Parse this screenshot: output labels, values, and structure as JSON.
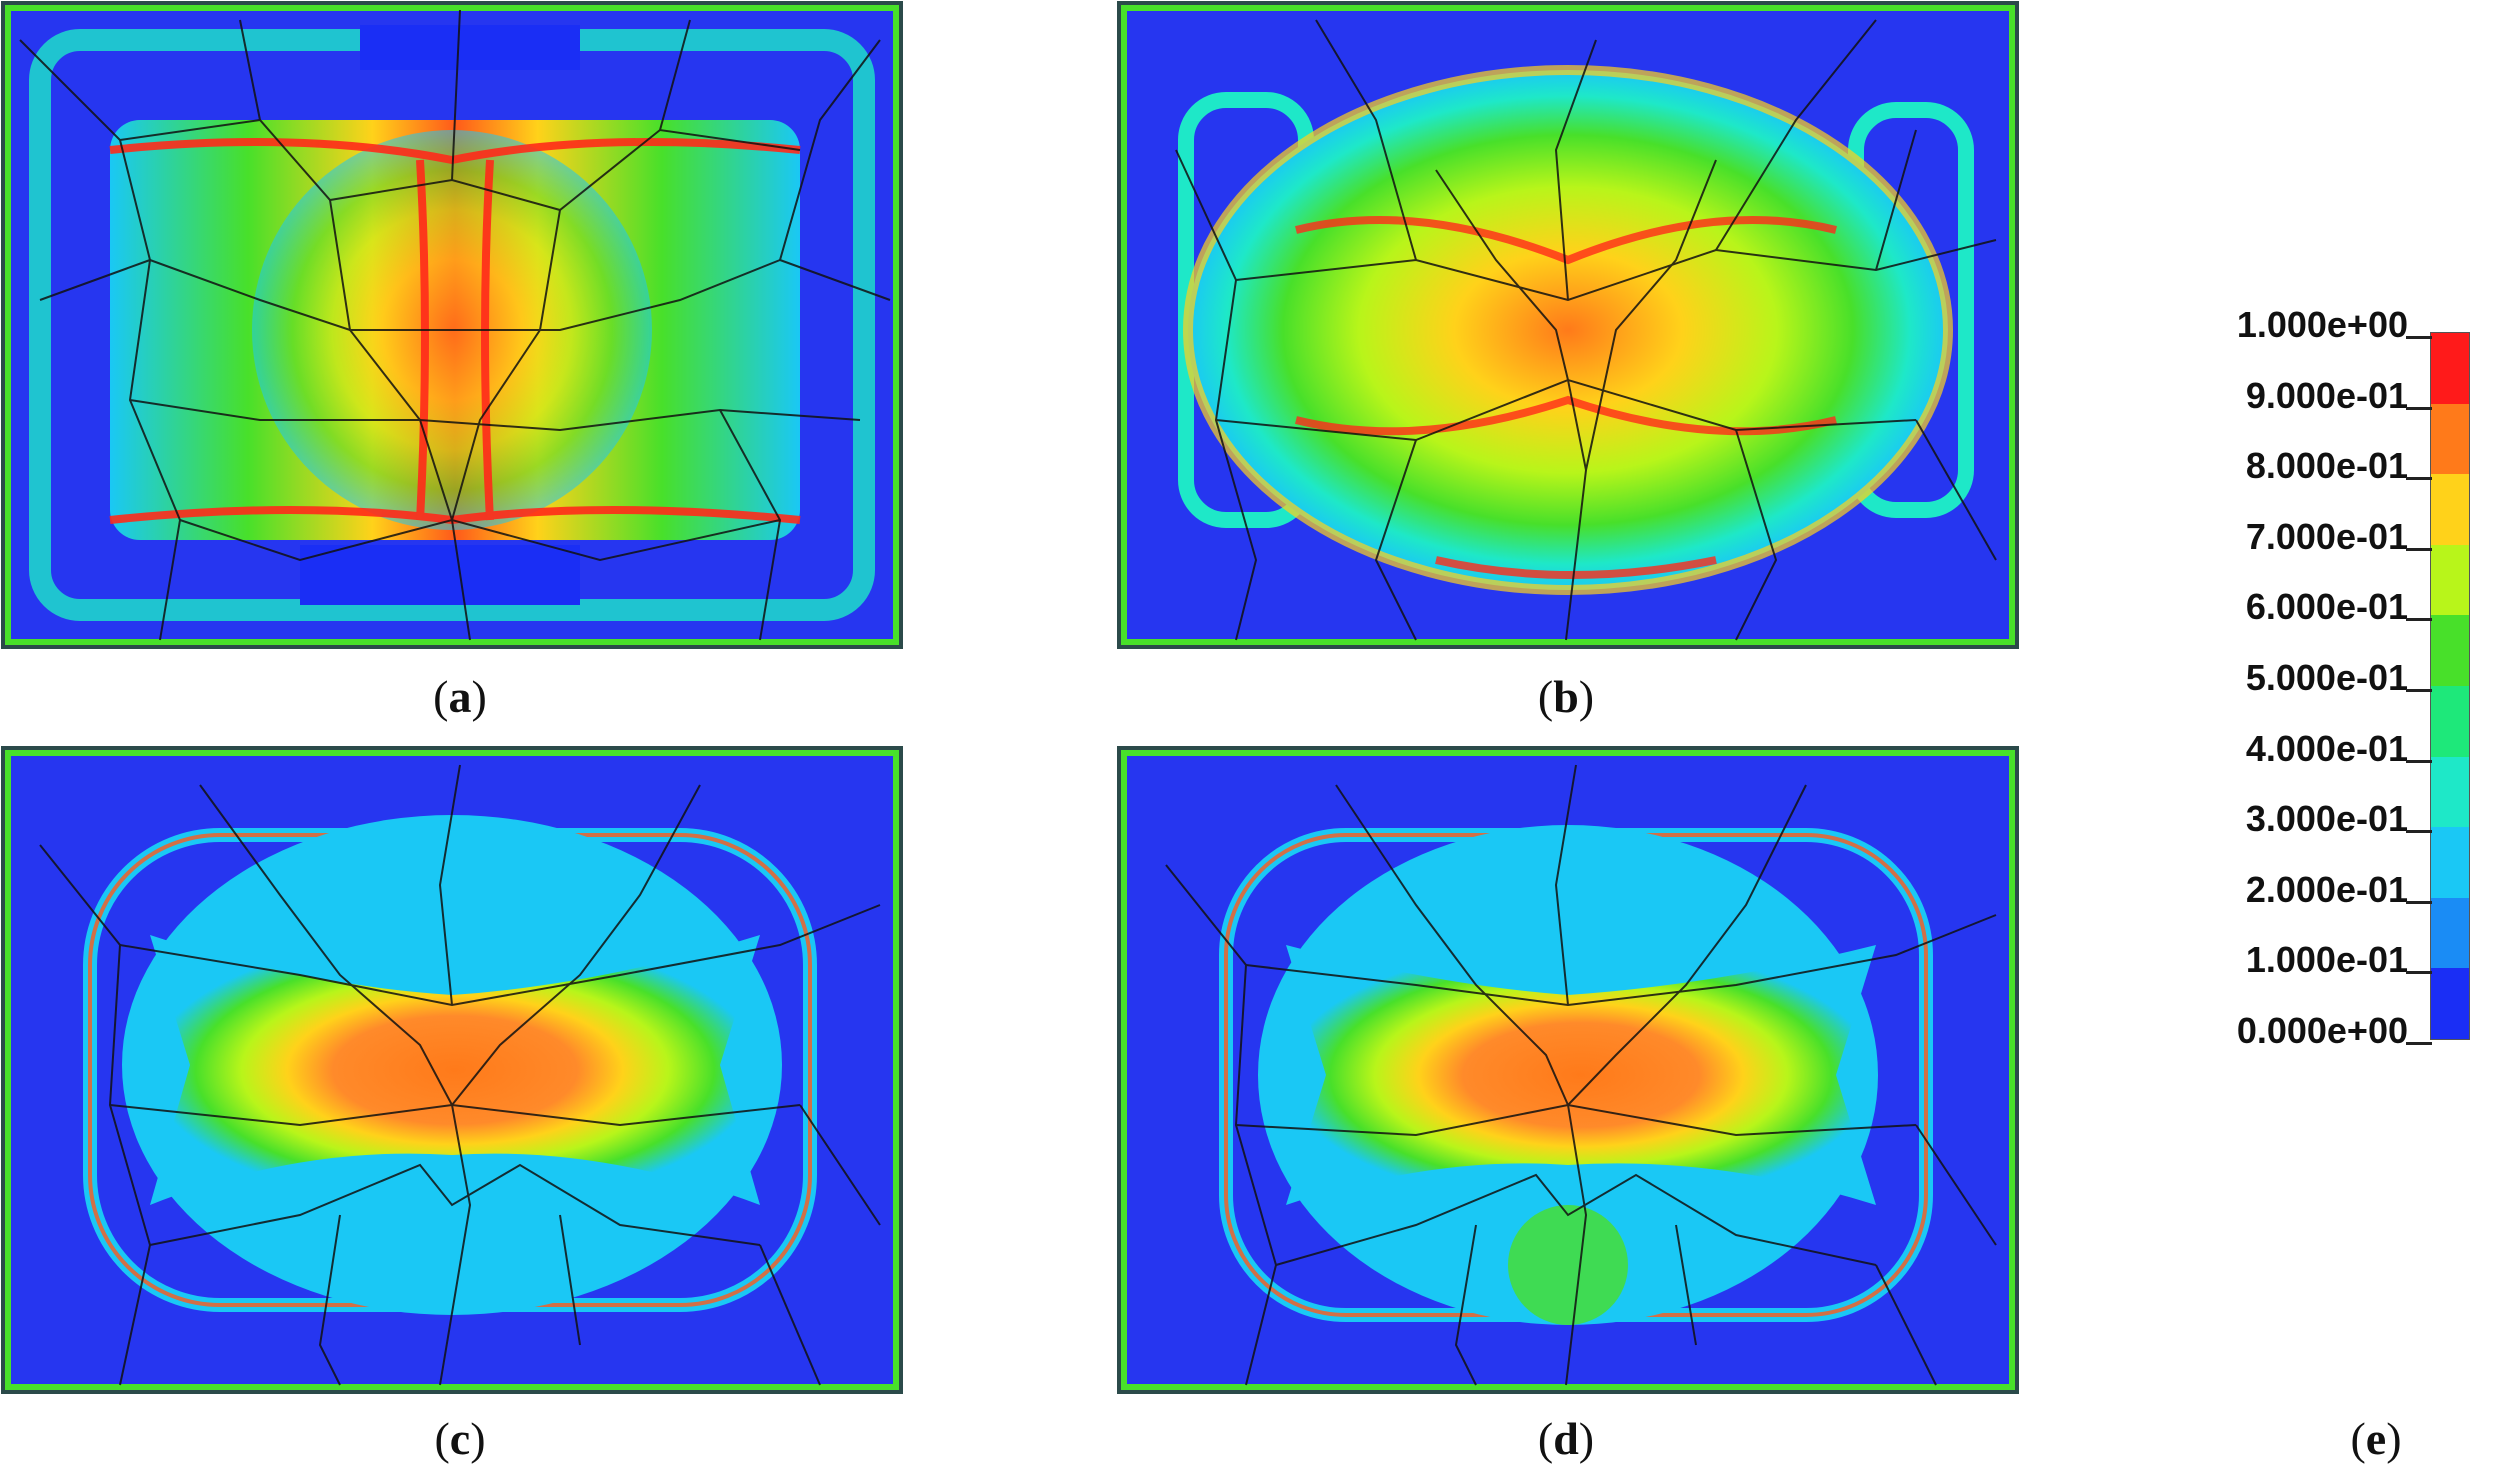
{
  "panels": [
    {
      "id": "a",
      "label": "a",
      "pattern": "vertical-band"
    },
    {
      "id": "b",
      "label": "b",
      "pattern": "ring-center"
    },
    {
      "id": "c",
      "label": "c",
      "pattern": "ring-cross"
    },
    {
      "id": "d",
      "label": "d",
      "pattern": "ring-cross-wide"
    }
  ],
  "legend": {
    "caption": "e",
    "labels": [
      "1.000e+00",
      "9.000e-01",
      "8.000e-01",
      "7.000e-01",
      "6.000e-01",
      "5.000e-01",
      "4.000e-01",
      "3.000e-01",
      "2.000e-01",
      "1.000e-01",
      "0.000e+00"
    ],
    "colors": [
      "#ff1a1a",
      "#ff7a1a",
      "#ffd21a",
      "#b8f51a",
      "#48e02a",
      "#1ee87a",
      "#1ee8c8",
      "#1ac8f5",
      "#1a8cf5",
      "#1a2ef5"
    ]
  }
}
